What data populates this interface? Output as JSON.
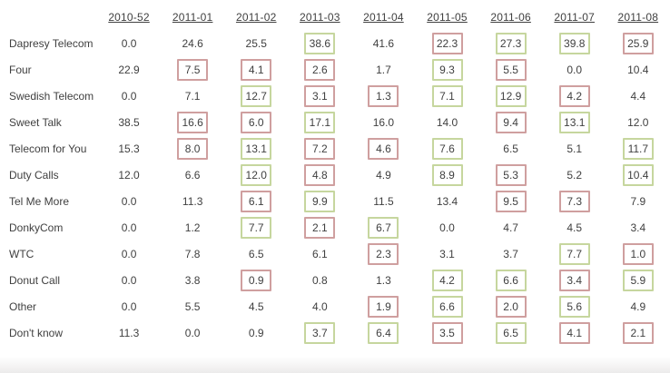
{
  "colors": {
    "green_box_border": "#c6d69e",
    "red_box_border": "#cf9f9f",
    "text": "#404040",
    "background": "#ffffff"
  },
  "chart_data": {
    "type": "table",
    "title": "",
    "column_headers": [
      "2010-52",
      "2011-01",
      "2011-02",
      "2011-03",
      "2011-04",
      "2011-05",
      "2011-06",
      "2011-07",
      "2011-08"
    ],
    "highlight_legend": [
      "green = green-bordered significance box",
      "red = red-bordered significance box",
      "null = no box"
    ],
    "rows": [
      {
        "label": "Dapresy Telecom",
        "values": [
          0.0,
          24.6,
          25.5,
          38.6,
          41.6,
          22.3,
          27.3,
          39.8,
          25.9
        ],
        "highlights": [
          null,
          null,
          null,
          "green",
          null,
          "red",
          "green",
          "green",
          "red"
        ]
      },
      {
        "label": "Four",
        "values": [
          22.9,
          7.5,
          4.1,
          2.6,
          1.7,
          9.3,
          5.5,
          0.0,
          10.4
        ],
        "highlights": [
          null,
          "red",
          "red",
          "red",
          null,
          "green",
          "red",
          null,
          null
        ]
      },
      {
        "label": "Swedish Telecom",
        "values": [
          0.0,
          7.1,
          12.7,
          3.1,
          1.3,
          7.1,
          12.9,
          4.2,
          4.4
        ],
        "highlights": [
          null,
          null,
          "green",
          "red",
          "red",
          "green",
          "green",
          "red",
          null
        ]
      },
      {
        "label": "Sweet Talk",
        "values": [
          38.5,
          16.6,
          6.0,
          17.1,
          16.0,
          14.0,
          9.4,
          13.1,
          12.0
        ],
        "highlights": [
          null,
          "red",
          "red",
          "green",
          null,
          null,
          "red",
          "green",
          null
        ]
      },
      {
        "label": "Telecom for You",
        "values": [
          15.3,
          8.0,
          13.1,
          7.2,
          4.6,
          7.6,
          6.5,
          5.1,
          11.7
        ],
        "highlights": [
          null,
          "red",
          "green",
          "red",
          "red",
          "green",
          null,
          null,
          "green"
        ]
      },
      {
        "label": "Duty Calls",
        "values": [
          12.0,
          6.6,
          12.0,
          4.8,
          4.9,
          8.9,
          5.3,
          5.2,
          10.4
        ],
        "highlights": [
          null,
          null,
          "green",
          "red",
          null,
          "green",
          "red",
          null,
          "green"
        ]
      },
      {
        "label": "Tel Me More",
        "values": [
          0.0,
          11.3,
          6.1,
          9.9,
          11.5,
          13.4,
          9.5,
          7.3,
          7.9
        ],
        "highlights": [
          null,
          null,
          "red",
          "green",
          null,
          null,
          "red",
          "red",
          null
        ]
      },
      {
        "label": "DonkyCom",
        "values": [
          0.0,
          1.2,
          7.7,
          2.1,
          6.7,
          0.0,
          4.7,
          4.5,
          3.4
        ],
        "highlights": [
          null,
          null,
          "green",
          "red",
          "green",
          null,
          null,
          null,
          null
        ]
      },
      {
        "label": "WTC",
        "values": [
          0.0,
          7.8,
          6.5,
          6.1,
          2.3,
          3.1,
          3.7,
          7.7,
          1.0
        ],
        "highlights": [
          null,
          null,
          null,
          null,
          "red",
          null,
          null,
          "green",
          "red"
        ]
      },
      {
        "label": "Donut Call",
        "values": [
          0.0,
          3.8,
          0.9,
          0.8,
          1.3,
          4.2,
          6.6,
          3.4,
          5.9
        ],
        "highlights": [
          null,
          null,
          "red",
          null,
          null,
          "green",
          "green",
          "red",
          "green"
        ]
      },
      {
        "label": "Other",
        "values": [
          0.0,
          5.5,
          4.5,
          4.0,
          1.9,
          6.6,
          2.0,
          5.6,
          4.9
        ],
        "highlights": [
          null,
          null,
          null,
          null,
          "red",
          "green",
          "red",
          "green",
          null
        ]
      },
      {
        "label": "Don't know",
        "values": [
          11.3,
          0.0,
          0.9,
          3.7,
          6.4,
          3.5,
          6.5,
          4.1,
          2.1
        ],
        "highlights": [
          null,
          null,
          null,
          "green",
          "green",
          "red",
          "green",
          "red",
          "red"
        ]
      }
    ],
    "value_format": "one-decimal",
    "grid": false,
    "notes_visible_on_screen": []
  }
}
